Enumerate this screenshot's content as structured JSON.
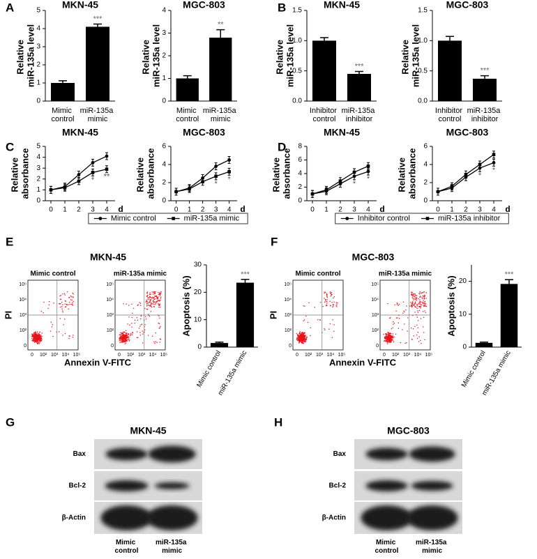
{
  "panel_letters": [
    "A",
    "B",
    "C",
    "D",
    "E",
    "F",
    "G",
    "H"
  ],
  "chart_data": [
    {
      "type": "bar",
      "title": "MKN-45",
      "ylabel": "Relative miR-135a level",
      "categories": [
        "Mimic control",
        "miR-135a mimic"
      ],
      "values": [
        1.0,
        4.1
      ],
      "errors": [
        0.12,
        0.15
      ],
      "significance": [
        null,
        "***"
      ],
      "color": "#000000",
      "ylim": [
        0,
        5
      ],
      "yticks": [
        0,
        1,
        2,
        3,
        4,
        5
      ]
    },
    {
      "type": "bar",
      "title": "MGC-803",
      "ylabel": "Relative miR-135a level",
      "categories": [
        "Mimic control",
        "miR-135a mimic"
      ],
      "values": [
        1.0,
        2.8
      ],
      "errors": [
        0.12,
        0.35
      ],
      "significance": [
        null,
        "**"
      ],
      "color": "#000000",
      "ylim": [
        0,
        4
      ],
      "yticks": [
        0,
        1,
        2,
        3,
        4
      ]
    },
    {
      "type": "bar",
      "title": "MKN-45",
      "ylabel": "Relative miR-135a level",
      "categories": [
        "Inhibitor control",
        "miR-135a inhibitor"
      ],
      "values": [
        1.0,
        0.45
      ],
      "errors": [
        0.05,
        0.04
      ],
      "significance": [
        null,
        "***"
      ],
      "color": "#000000",
      "ylim": [
        0,
        1.5
      ],
      "yticks": [
        {
          "value": 0,
          "label": "0.0"
        },
        0.5,
        {
          "value": 1,
          "label": "1.0"
        },
        1.5
      ]
    },
    {
      "type": "bar",
      "title": "MGC-803",
      "ylabel": "Relative miR-135a level",
      "categories": [
        "Inhibitor control",
        "miR-135a inhibitor"
      ],
      "values": [
        1.0,
        0.37
      ],
      "errors": [
        0.07,
        0.05
      ],
      "significance": [
        null,
        "***"
      ],
      "color": "#000000",
      "ylim": [
        0,
        1.5
      ],
      "yticks": [
        {
          "value": 0,
          "label": "0.0"
        },
        0.5,
        {
          "value": 1,
          "label": "1.0"
        },
        1.5
      ]
    },
    {
      "type": "line",
      "title": "MKN-45",
      "ylabel": "Relative absorbance",
      "xlabel": "d",
      "x": [
        0,
        1,
        2,
        3,
        4
      ],
      "xlim": [
        -0.4,
        4.6
      ],
      "xticks": [
        0,
        1,
        2,
        3,
        4
      ],
      "ylim": [
        0,
        5
      ],
      "yticks": [
        0,
        1,
        2,
        3,
        4,
        5
      ],
      "series": [
        {
          "name": "Mimic control",
          "color": "#000000",
          "marker": "circle",
          "values": [
            1.0,
            1.3,
            2.4,
            3.5,
            4.1
          ]
        },
        {
          "name": "miR-135a mimic",
          "color": "#000000",
          "marker": "square",
          "values": [
            1.0,
            1.2,
            1.8,
            2.6,
            2.9
          ],
          "significance": [
            null,
            null,
            null,
            "*",
            "**"
          ]
        }
      ]
    },
    {
      "type": "line",
      "title": "MGC-803",
      "ylabel": "Relative absorbance",
      "xlabel": "d",
      "x": [
        0,
        1,
        2,
        3,
        4
      ],
      "xlim": [
        -0.4,
        4.6
      ],
      "xticks": [
        0,
        1,
        2,
        3,
        4
      ],
      "ylim": [
        0,
        6
      ],
      "yticks": [
        0,
        2,
        4,
        6
      ],
      "series": [
        {
          "color": "#000000",
          "marker": "circle",
          "values": [
            1.0,
            1.4,
            2.5,
            3.8,
            4.5
          ]
        },
        {
          "color": "#000000",
          "marker": "square",
          "values": [
            1.0,
            1.3,
            2.1,
            2.7,
            3.2
          ],
          "significance": [
            null,
            null,
            null,
            "*",
            "*"
          ]
        }
      ]
    },
    {
      "type": "line",
      "title": "MKN-45",
      "ylabel": "Relative absorbance",
      "xlabel": "d",
      "x": [
        0,
        1,
        2,
        3,
        4
      ],
      "xlim": [
        -0.4,
        4.6
      ],
      "xticks": [
        0,
        1,
        2,
        3,
        4
      ],
      "ylim": [
        0,
        8
      ],
      "yticks": [
        0,
        2,
        4,
        6,
        8
      ],
      "series": [
        {
          "name": "Inhibitor control",
          "color": "#000000",
          "marker": "circle",
          "values": [
            1.0,
            1.4,
            2.5,
            3.6,
            4.3
          ],
          "significance": [
            null,
            null,
            null,
            "*",
            "*"
          ]
        },
        {
          "name": "miR-135a inhibitor",
          "color": "#000000",
          "marker": "square",
          "values": [
            1.0,
            1.6,
            2.9,
            4.2,
            5.1
          ]
        }
      ]
    },
    {
      "type": "line",
      "title": "MGC-803",
      "ylabel": "Relative absorbance",
      "xlabel": "d",
      "x": [
        0,
        1,
        2,
        3,
        4
      ],
      "xlim": [
        -0.4,
        4.6
      ],
      "xticks": [
        0,
        1,
        2,
        3,
        4
      ],
      "ylim": [
        0,
        6
      ],
      "yticks": [
        0,
        2,
        4,
        6
      ],
      "series": [
        {
          "color": "#000000",
          "marker": "circle",
          "values": [
            1.0,
            1.4,
            2.6,
            3.6,
            4.2
          ],
          "significance": [
            null,
            null,
            null,
            "*",
            "*"
          ]
        },
        {
          "color": "#000000",
          "marker": "square",
          "values": [
            1.0,
            1.6,
            2.9,
            4.0,
            5.1
          ]
        }
      ]
    },
    {
      "type": "bar",
      "ylabel": "Apoptosis (%)",
      "rotate_labels": true,
      "categories": [
        "Mimic control",
        "miR-135a mimic"
      ],
      "values": [
        1.5,
        23.5
      ],
      "errors": [
        0.3,
        1.2
      ],
      "significance": [
        null,
        "***"
      ],
      "color": "#000000",
      "ylim": [
        0,
        30
      ],
      "yticks": [
        0,
        10,
        20,
        30
      ]
    },
    {
      "type": "bar",
      "ylabel": "Apoptosis (%)",
      "rotate_labels": true,
      "categories": [
        "Mimic control",
        "miR-135a mimic"
      ],
      "values": [
        1.3,
        19.2
      ],
      "errors": [
        0.2,
        1.3
      ],
      "significance": [
        null,
        "***"
      ],
      "color": "#000000",
      "ylim": [
        0,
        25
      ],
      "yticks": [
        0,
        10,
        20
      ]
    }
  ],
  "flow_axis_ticks": [
    "0",
    "10²",
    "10³",
    "10⁴",
    "10⁵"
  ],
  "flow_panels": [
    {
      "title": "MKN-45",
      "plots": [
        "Mimic control",
        "miR-135a mimic"
      ],
      "ylabel": "PI",
      "xlabel": "Annexin V-FITC"
    },
    {
      "title": "MGC-803",
      "plots": [
        "Mimic control",
        "miR-135a mimic"
      ],
      "ylabel": "PI",
      "xlabel": "Annexin V-FITC"
    }
  ],
  "blots": [
    {
      "title": "MKN-45",
      "rows": [
        "Bax",
        "Bcl-2",
        "β-Actin"
      ],
      "columns": [
        "Mimic control",
        "miR-135a mimic"
      ]
    },
    {
      "title": "MGC-803",
      "rows": [
        "Bax",
        "Bcl-2",
        "β-Actin"
      ],
      "columns": [
        "Mimic control",
        "miR-135a mimic"
      ]
    }
  ]
}
